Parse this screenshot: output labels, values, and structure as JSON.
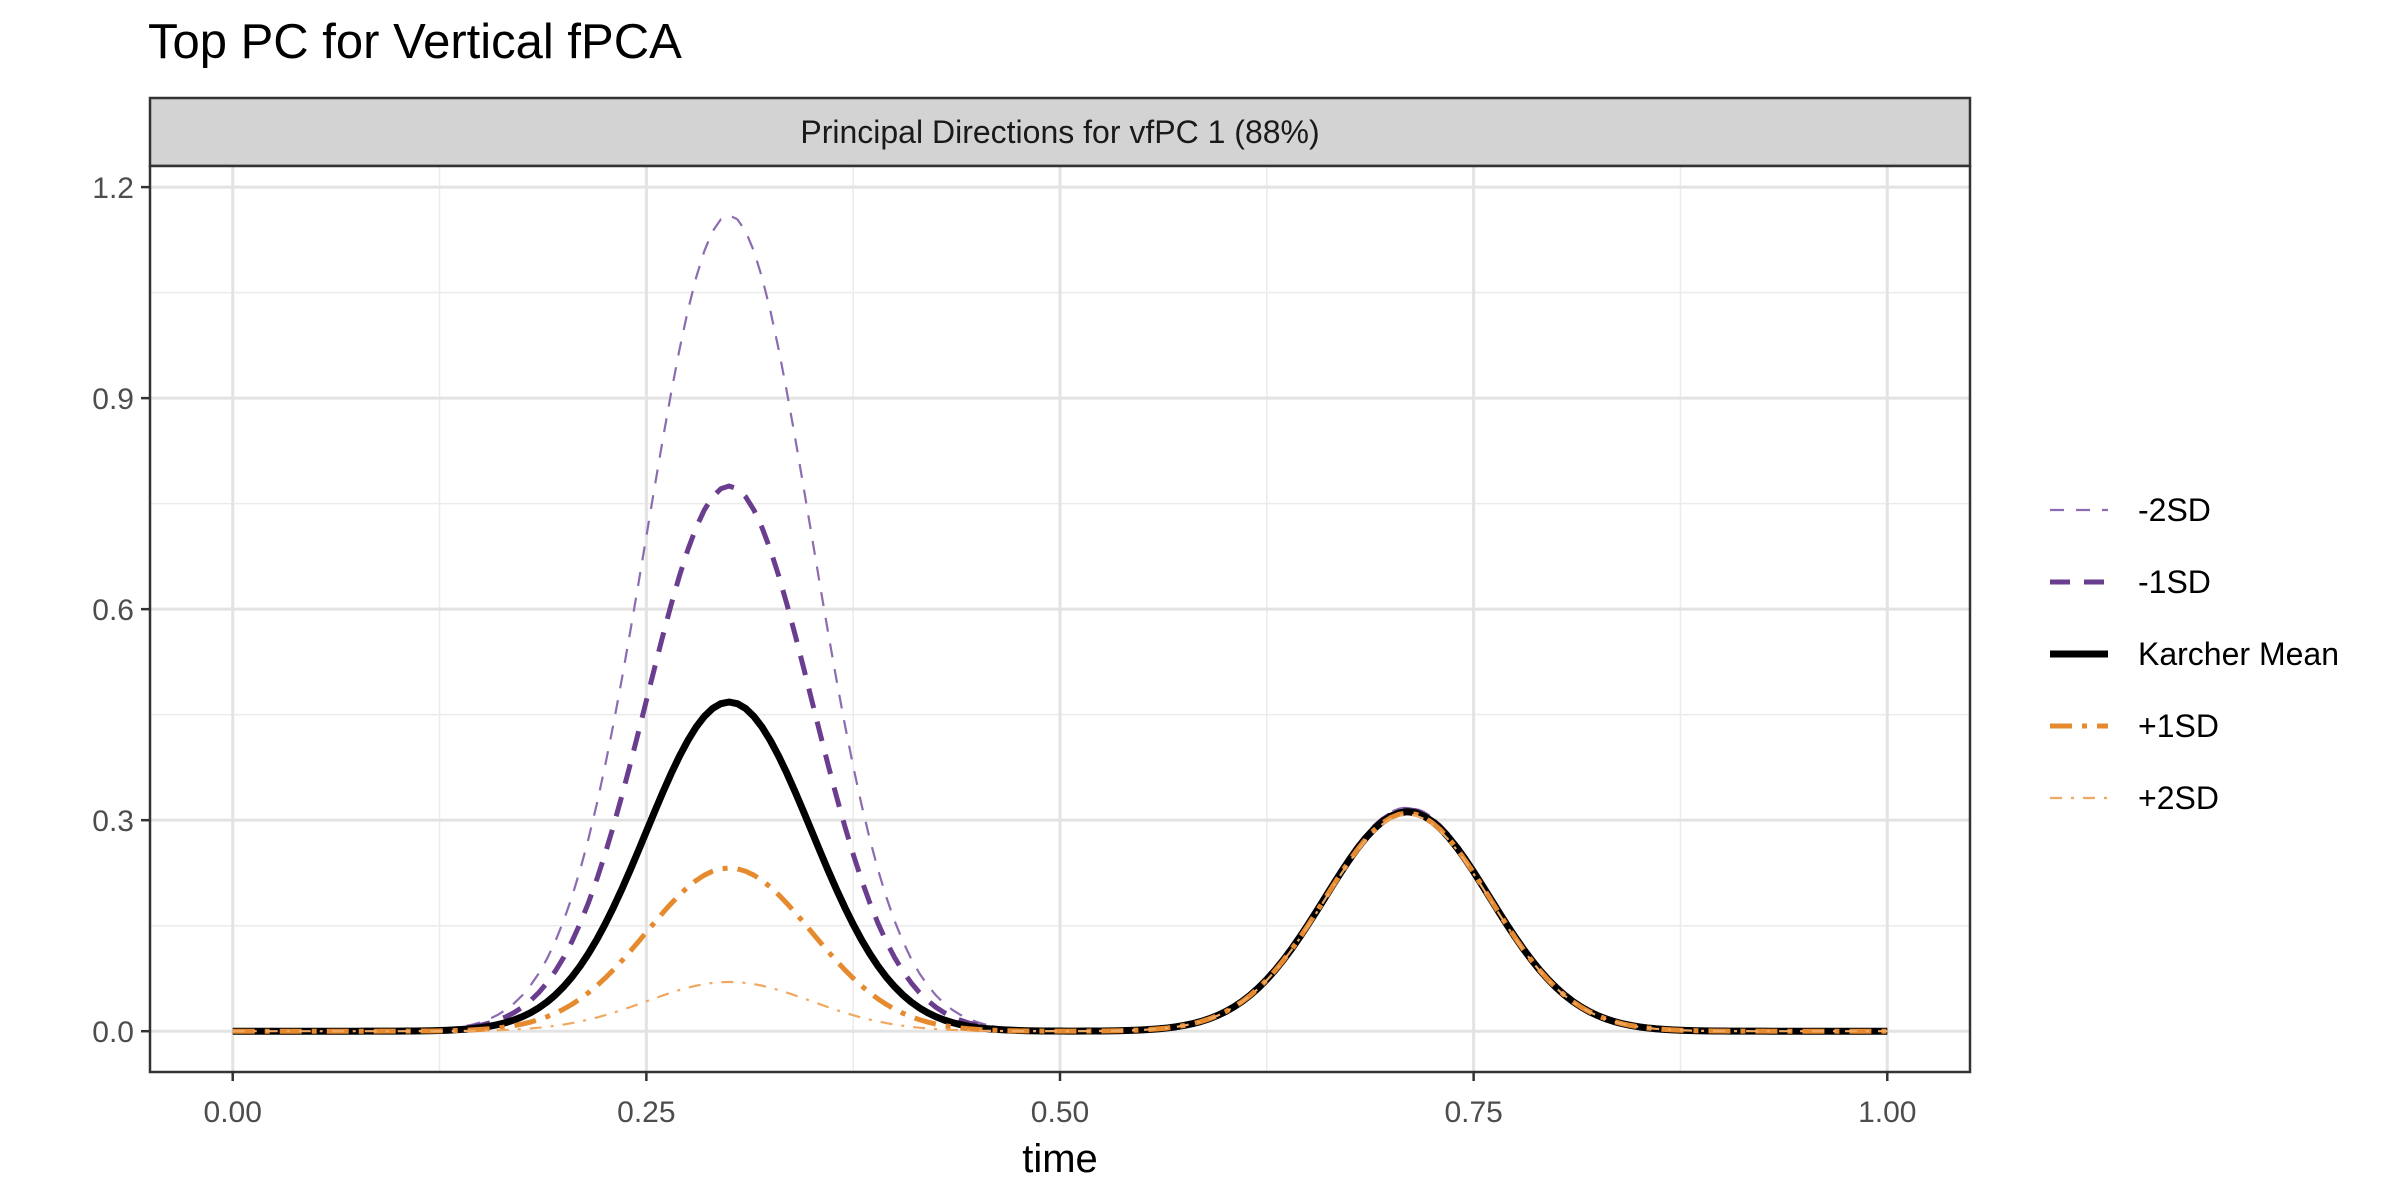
{
  "chart_data": {
    "type": "line",
    "title": "Top PC for Vertical fPCA",
    "facet_label": "Principal Directions for vfPC 1 (88%)",
    "xlabel": "time",
    "ylabel": "",
    "xlim": [
      -0.05,
      1.05
    ],
    "ylim": [
      -0.058,
      1.23
    ],
    "x_ticks": [
      0,
      0.25,
      0.5,
      0.75,
      1
    ],
    "x_tick_labels": [
      "0.00",
      "0.25",
      "0.50",
      "0.75",
      "1.00"
    ],
    "y_ticks": [
      0,
      0.3,
      0.6,
      0.9,
      1.2
    ],
    "y_tick_labels": [
      "0.0",
      "0.3",
      "0.6",
      "0.9",
      "1.2"
    ],
    "grid": true,
    "legend_position": "right",
    "curve_model": {
      "peak1": {
        "mu": 0.3,
        "sigma": 0.05
      },
      "peak2": {
        "mu": 0.71,
        "sigma": 0.05
      }
    },
    "series": [
      {
        "name": "-2SD",
        "amp1": 1.16,
        "amp2": 0.318,
        "color": "#8c6bb1",
        "style": "dashed",
        "width": 2.2
      },
      {
        "name": "-1SD",
        "amp1": 0.775,
        "amp2": 0.315,
        "color": "#6a3d8f",
        "style": "dashed-bold",
        "width": 5
      },
      {
        "name": "Karcher Mean",
        "amp1": 0.468,
        "amp2": 0.312,
        "color": "#000000",
        "style": "solid",
        "width": 7
      },
      {
        "name": "+1SD",
        "amp1": 0.232,
        "amp2": 0.31,
        "color": "#e58a2e",
        "style": "dotdash",
        "width": 5
      },
      {
        "name": "+2SD",
        "amp1": 0.07,
        "amp2": 0.308,
        "color": "#f0a860",
        "style": "dotdash-thin",
        "width": 2.2
      }
    ]
  }
}
